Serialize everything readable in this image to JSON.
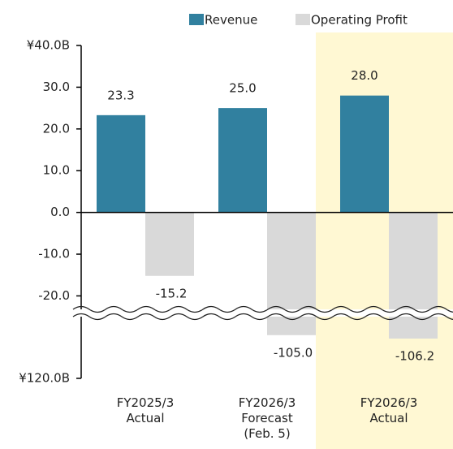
{
  "chart_data": {
    "type": "bar",
    "categories": [
      "FY2025/3\nActual",
      "FY2026/3\nForecast\n(Feb. 5)",
      "FY2026/3\nActual"
    ],
    "series": [
      {
        "name": "Revenue",
        "color": "#31809f",
        "values": [
          23.3,
          25.0,
          28.0
        ],
        "value_labels": [
          "23.3",
          "25.0",
          "28.0"
        ]
      },
      {
        "name": "Operating Profit",
        "color": "#d9d9d9",
        "values": [
          -15.2,
          -105.0,
          -106.2
        ],
        "value_labels": [
          "-15.2",
          "-105.0",
          "-106.2"
        ]
      }
    ],
    "ylim": [
      -120,
      40
    ],
    "ybreak": [
      -100,
      -24
    ],
    "yticks": [
      {
        "value": 40,
        "label": "¥40.0B"
      },
      {
        "value": 30,
        "label": "30.0"
      },
      {
        "value": 20,
        "label": "20.0"
      },
      {
        "value": 10,
        "label": "10.0"
      },
      {
        "value": 0,
        "label": "0.0"
      },
      {
        "value": -10,
        "label": "-10.0"
      },
      {
        "value": -20,
        "label": "-20.0"
      },
      {
        "value": -120,
        "label": "¥120.0B"
      }
    ],
    "highlight": 2,
    "highlight_color": "#fff8d3",
    "legend": "top"
  }
}
